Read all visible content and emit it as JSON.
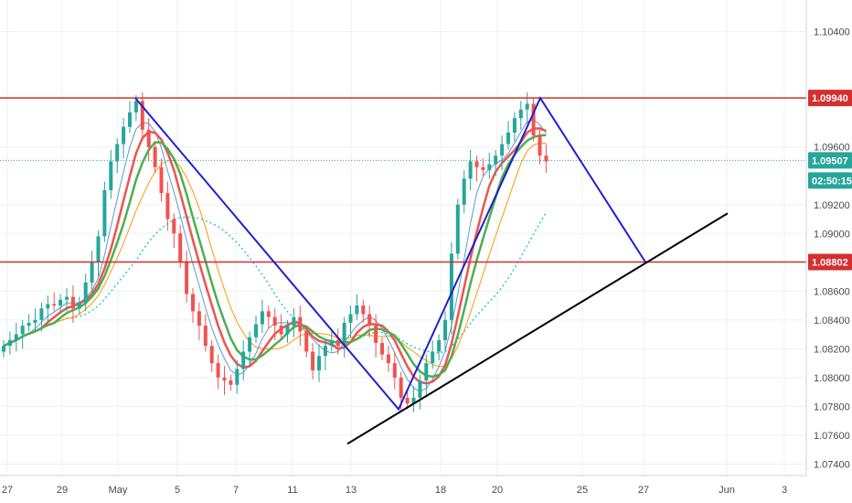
{
  "chart_data": {
    "type": "candlestick",
    "y_axis": {
      "position": "right",
      "ylim": [
        1.0732,
        1.1062
      ],
      "ticks": [
        "1.10400",
        "1.09600",
        "1.09200",
        "1.09000",
        "1.08600",
        "1.08400",
        "1.08200",
        "1.08000",
        "1.07800",
        "1.07600",
        "1.07400"
      ]
    },
    "x_axis": {
      "position": "bottom",
      "ticks": [
        "27",
        "29",
        "May",
        "5",
        "7",
        "11",
        "13",
        "18",
        "20",
        "25",
        "27",
        "Jun",
        "3"
      ]
    },
    "grid": true,
    "legend": "none",
    "horizontal_levels": [
      {
        "value": 1.0994,
        "label": "1.09940",
        "color": "#d32f2f"
      },
      {
        "value": 1.08802,
        "label": "1.08802",
        "color": "#d32f2f"
      }
    ],
    "last_price": {
      "value": 1.09507,
      "label": "1.09507",
      "countdown": "02:50:15",
      "color": "#26a69a"
    },
    "pattern_lines": [
      {
        "color": "#1f1fd1",
        "points": [
          [
            1.0994,
            "May 1"
          ],
          [
            1.0778,
            "May 15"
          ],
          [
            1.0994,
            "May 22"
          ],
          [
            1.08802,
            "May 27"
          ]
        ]
      }
    ],
    "trendline": {
      "color": "#000000",
      "from": 1.0754,
      "to": 1.0914
    },
    "colors": {
      "up": "#26a69a",
      "down": "#ef5350",
      "ma_fast": "#4caf50",
      "ma_mid": "#ef5350",
      "ma_slow": "#ff9800",
      "ma_thin": "#5c9bd1",
      "ma_dotted": "#26c6da"
    }
  }
}
